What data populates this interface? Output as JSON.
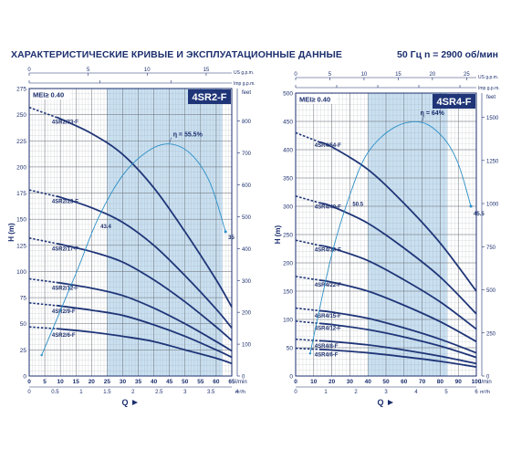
{
  "header": {
    "title": "ХАРАКТЕРИСТИЧЕСКИЕ КРИВЫЕ И ЭКСПЛУАТАЦИОННЫЕ ДАННЫЕ",
    "subtitle": "50 Гц   n = 2900 об/мин"
  },
  "colors": {
    "curve": "#1f3578",
    "efficiency": "#2a8fc7",
    "band": "#c9e0f1",
    "grid": "#9aa0a6",
    "label_box": "#1f3578"
  },
  "chart_data": [
    {
      "type": "line",
      "model_label": "4SR2-F",
      "mei_label": "MEI≥ 0.40",
      "x_unit_bottom": "l/min",
      "x_unit_mid": "m³/h",
      "x_unit_top1": "US g.p.m.",
      "x_unit_top2": "Imp g.p.m.",
      "y_unit_left": "H (m)",
      "y_unit_right": "feet",
      "q_label": "Q",
      "xlim": [
        0,
        65
      ],
      "ylim": [
        0,
        275
      ],
      "x_ticks": [
        0,
        5,
        10,
        15,
        20,
        25,
        30,
        35,
        40,
        45,
        50,
        55,
        60,
        65
      ],
      "y_ticks": [
        0,
        25,
        50,
        75,
        100,
        125,
        150,
        175,
        200,
        225,
        250,
        275
      ],
      "mid_ticks": [
        {
          "label": "0",
          "lpm": 0
        },
        {
          "label": "0.5",
          "lpm": 8.33
        },
        {
          "label": "1",
          "lpm": 16.67
        },
        {
          "label": "1.5",
          "lpm": 25
        },
        {
          "label": "2",
          "lpm": 33.33
        },
        {
          "label": "2.5",
          "lpm": 41.67
        },
        {
          "label": "3",
          "lpm": 50
        },
        {
          "label": "3.5",
          "lpm": 58.33
        },
        {
          "label": "4",
          "lpm": 66.67
        }
      ],
      "top1_ticks": [
        {
          "label": "0",
          "lpm": 0
        },
        {
          "label": "5",
          "lpm": 18.93
        },
        {
          "label": "10",
          "lpm": 37.85
        },
        {
          "label": "15",
          "lpm": 56.78
        }
      ],
      "top2_ticks": [
        {
          "label": "0",
          "lpm": 0
        },
        {
          "label": "5",
          "lpm": 22.73
        },
        {
          "label": "10",
          "lpm": 45.46
        },
        {
          "label": "15",
          "lpm": 68.19
        }
      ],
      "feet_ticks": [
        0,
        100,
        200,
        300,
        400,
        500,
        600,
        700,
        800
      ],
      "band": [
        25,
        62
      ],
      "series": [
        {
          "name": "4SR2/33-F",
          "label_q": 7,
          "points": [
            [
              0,
              257
            ],
            [
              10,
              246
            ],
            [
              20,
              232
            ],
            [
              30,
              212
            ],
            [
              40,
              180
            ],
            [
              50,
              138
            ],
            [
              60,
              92
            ],
            [
              65,
              66
            ]
          ]
        },
        {
          "name": "4SR2/23-F",
          "label_q": 7,
          "points": [
            [
              0,
              178
            ],
            [
              10,
              171
            ],
            [
              20,
              161
            ],
            [
              30,
              147
            ],
            [
              40,
              125
            ],
            [
              50,
              96
            ],
            [
              60,
              64
            ],
            [
              65,
              46
            ]
          ]
        },
        {
          "name": "4SR2/17-F",
          "label_q": 7,
          "points": [
            [
              0,
              132
            ],
            [
              10,
              126
            ],
            [
              20,
              119
            ],
            [
              30,
              109
            ],
            [
              40,
              92
            ],
            [
              50,
              71
            ],
            [
              60,
              47
            ],
            [
              65,
              34
            ]
          ]
        },
        {
          "name": "4SR2/12-F",
          "label_q": 7,
          "points": [
            [
              0,
              93
            ],
            [
              10,
              89
            ],
            [
              20,
              84
            ],
            [
              30,
              77
            ],
            [
              40,
              65
            ],
            [
              50,
              50
            ],
            [
              60,
              33
            ],
            [
              65,
              24
            ]
          ]
        },
        {
          "name": "4SR2/9-F",
          "label_q": 7,
          "points": [
            [
              0,
              70
            ],
            [
              10,
              67
            ],
            [
              20,
              63
            ],
            [
              30,
              58
            ],
            [
              40,
              49
            ],
            [
              50,
              38
            ],
            [
              60,
              25
            ],
            [
              65,
              18
            ]
          ]
        },
        {
          "name": "4SR2/6-F",
          "label_q": 7,
          "points": [
            [
              0,
              47
            ],
            [
              10,
              45
            ],
            [
              20,
              42
            ],
            [
              30,
              38
            ],
            [
              40,
              33
            ],
            [
              50,
              25
            ],
            [
              60,
              17
            ],
            [
              65,
              12
            ]
          ]
        }
      ],
      "dashed_until": 9,
      "efficiency": {
        "points": [
          [
            4,
            20
          ],
          [
            15,
            98
          ],
          [
            22,
            150
          ],
          [
            30,
            192
          ],
          [
            38,
            215
          ],
          [
            45,
            222
          ],
          [
            52,
            212
          ],
          [
            58,
            185
          ],
          [
            63,
            138
          ]
        ],
        "peak_label": "η = 55.5%",
        "start_label": "43.4",
        "end_label": "35"
      }
    },
    {
      "type": "line",
      "model_label": "4SR4-F",
      "mei_label": "MEI≥ 0.40",
      "x_unit_bottom": "l/min",
      "x_unit_mid": "m³/h",
      "x_unit_top1": "US g.p.m.",
      "x_unit_top2": "Imp g.p.m.",
      "y_unit_left": "H (m)",
      "y_unit_right": "feet",
      "q_label": "Q",
      "xlim": [
        0,
        100
      ],
      "ylim": [
        0,
        500
      ],
      "x_ticks": [
        0,
        10,
        20,
        30,
        40,
        50,
        60,
        70,
        80,
        90,
        100
      ],
      "y_ticks": [
        0,
        50,
        100,
        150,
        200,
        250,
        300,
        350,
        400,
        450,
        500
      ],
      "mid_ticks": [
        {
          "label": "0",
          "lpm": 0
        },
        {
          "label": "1",
          "lpm": 16.67
        },
        {
          "label": "2",
          "lpm": 33.33
        },
        {
          "label": "3",
          "lpm": 50
        },
        {
          "label": "4",
          "lpm": 66.67
        },
        {
          "label": "5",
          "lpm": 83.33
        },
        {
          "label": "6",
          "lpm": 100
        }
      ],
      "top1_ticks": [
        {
          "label": "0",
          "lpm": 0
        },
        {
          "label": "5",
          "lpm": 18.93
        },
        {
          "label": "10",
          "lpm": 37.85
        },
        {
          "label": "15",
          "lpm": 56.78
        },
        {
          "label": "20",
          "lpm": 75.71
        },
        {
          "label": "25",
          "lpm": 94.64
        }
      ],
      "top2_ticks": [
        {
          "label": "0",
          "lpm": 0
        },
        {
          "label": "5",
          "lpm": 22.73
        },
        {
          "label": "10",
          "lpm": 45.46
        },
        {
          "label": "15",
          "lpm": 68.19
        },
        {
          "label": "20",
          "lpm": 90.92
        }
      ],
      "feet_ticks": [
        0,
        250,
        500,
        750,
        1000,
        1250,
        1500
      ],
      "band": [
        40,
        84
      ],
      "series": [
        {
          "name": "4SR4/54-F",
          "label_q": 10,
          "points": [
            [
              0,
              430
            ],
            [
              20,
              405
            ],
            [
              40,
              365
            ],
            [
              60,
              305
            ],
            [
              80,
              235
            ],
            [
              100,
              150
            ]
          ]
        },
        {
          "name": "4SR4/40-F",
          "label_q": 10,
          "points": [
            [
              0,
              318
            ],
            [
              20,
              300
            ],
            [
              40,
              270
            ],
            [
              60,
              226
            ],
            [
              80,
              175
            ],
            [
              100,
              110
            ]
          ]
        },
        {
          "name": "4SR4/30-F",
          "label_q": 10,
          "points": [
            [
              0,
              240
            ],
            [
              20,
              226
            ],
            [
              40,
              204
            ],
            [
              60,
              170
            ],
            [
              80,
              131
            ],
            [
              100,
              83
            ]
          ]
        },
        {
          "name": "4SR4/22-F",
          "label_q": 10,
          "points": [
            [
              0,
              176
            ],
            [
              20,
              166
            ],
            [
              40,
              150
            ],
            [
              60,
              125
            ],
            [
              80,
              96
            ],
            [
              100,
              61
            ]
          ]
        },
        {
          "name": "4SR4/15-F",
          "label_q": 10,
          "points": [
            [
              0,
              120
            ],
            [
              20,
              113
            ],
            [
              40,
              102
            ],
            [
              60,
              85
            ],
            [
              80,
              65
            ],
            [
              100,
              41
            ]
          ]
        },
        {
          "name": "4SR4/12-F",
          "label_q": 10,
          "points": [
            [
              0,
              97
            ],
            [
              20,
              91
            ],
            [
              40,
              82
            ],
            [
              60,
              69
            ],
            [
              80,
              53
            ],
            [
              100,
              33
            ]
          ]
        },
        {
          "name": "4SR4/8-F",
          "label_q": 10,
          "points": [
            [
              0,
              65
            ],
            [
              20,
              61
            ],
            [
              40,
              55
            ],
            [
              60,
              46
            ],
            [
              80,
              35
            ],
            [
              100,
              22
            ]
          ]
        },
        {
          "name": "4SR4/6-F",
          "label_q": 10,
          "points": [
            [
              0,
              49
            ],
            [
              20,
              46
            ],
            [
              40,
              41
            ],
            [
              60,
              34
            ],
            [
              80,
              26
            ],
            [
              100,
              16
            ]
          ]
        }
      ],
      "dashed_until": 13,
      "efficiency": {
        "points": [
          [
            8,
            40
          ],
          [
            20,
            215
          ],
          [
            30,
            320
          ],
          [
            40,
            395
          ],
          [
            55,
            440
          ],
          [
            70,
            448
          ],
          [
            82,
            420
          ],
          [
            90,
            375
          ],
          [
            97,
            300
          ]
        ],
        "peak_label": "η = 64%",
        "start_label": "50.5",
        "end_label": "45.5"
      }
    }
  ]
}
